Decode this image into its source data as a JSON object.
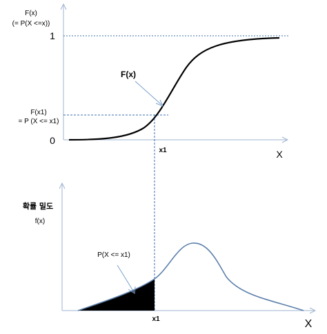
{
  "top_panel": {
    "y_label_line1": "F(x)",
    "y_label_line2": "(= P(X <=x))",
    "tick_one": "1",
    "tick_zero": "0",
    "curve_label": "F(x)",
    "marker_label_line1": "F(x1)",
    "marker_label_line2": "= P (X <= x1)",
    "x_tick": "x1",
    "x_axis_label": "X"
  },
  "bottom_panel": {
    "y_label_line1": "확률 밀도",
    "y_label_line2": "f(x)",
    "area_label": "P(X <= x1)",
    "x_tick": "x1",
    "x_axis_label": "X"
  },
  "colors": {
    "axis": "#9fb3cf",
    "guide": "#3a6fb0",
    "cdf_curve": "#000000",
    "pdf_curve": "#5b7faa",
    "shade": "#000000"
  }
}
